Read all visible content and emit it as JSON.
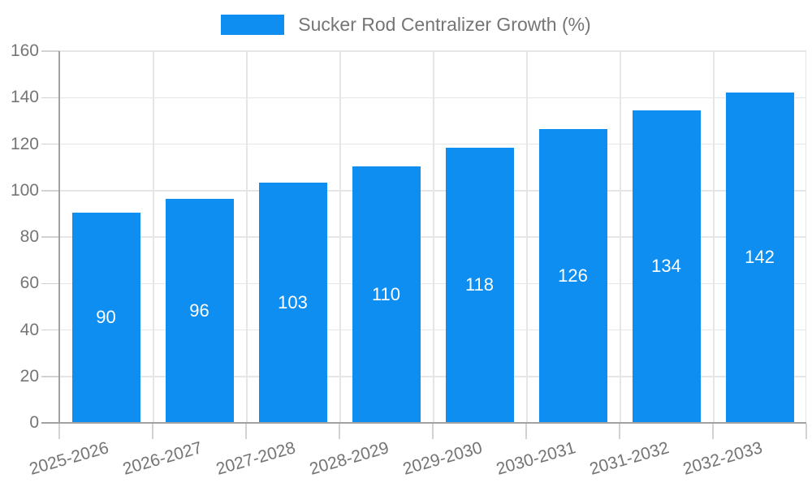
{
  "legend": {
    "label": "Sucker Rod Centralizer Growth (%)"
  },
  "colors": {
    "accent": "#0d8ef0",
    "axis_line": "#a2a2a2",
    "gridline": "#e6e6e6",
    "tick": "#d2d2d2",
    "axis_text": "#757575",
    "value_label_text": "#ffffff",
    "background": "#ffffff"
  },
  "chart_data": {
    "type": "bar",
    "title": "",
    "xlabel": "",
    "ylabel": "",
    "legend_label": "Sucker Rod Centralizer Growth (%)",
    "legend_position": "top-center",
    "categories": [
      "2025-2026",
      "2026-2027",
      "2027-2028",
      "2028-2029",
      "2029-2030",
      "2030-2031",
      "2031-2032",
      "2032-2033"
    ],
    "values": [
      90,
      96,
      103,
      110,
      118,
      126,
      134,
      142
    ],
    "ylim": [
      0,
      160
    ],
    "yticks": [
      0,
      20,
      40,
      60,
      80,
      100,
      120,
      140,
      160
    ],
    "grid": true,
    "x_label_rotation_deg": -16,
    "value_labels": "inside-center"
  }
}
